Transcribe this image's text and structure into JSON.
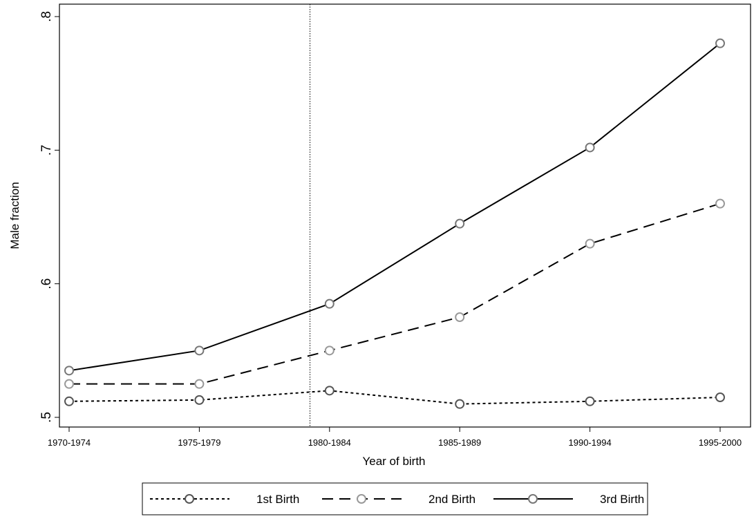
{
  "chart_data": {
    "type": "line",
    "xlabel": "Year of birth",
    "ylabel": "Male fraction",
    "categories": [
      "1970-1974",
      "1975-1979",
      "1980-1984",
      "1985-1989",
      "1990-1994",
      "1995-2000"
    ],
    "ylim": [
      0.5,
      0.8
    ],
    "yticks": [
      0.5,
      0.6,
      0.7,
      0.8
    ],
    "ytick_labels": [
      ".5",
      ".6",
      ".7",
      ".8"
    ],
    "reference_line_x": 1.85,
    "grid": false,
    "legend_position": "bottom",
    "series": [
      {
        "name": "1st Birth",
        "values": [
          0.512,
          0.513,
          0.52,
          0.51,
          0.512,
          0.515
        ],
        "line_style": "dotted",
        "marker_color": "#555555"
      },
      {
        "name": "2nd Birth",
        "values": [
          0.525,
          0.525,
          0.55,
          0.575,
          0.63,
          0.66
        ],
        "line_style": "dashed",
        "marker_color": "#999999"
      },
      {
        "name": "3rd Birth",
        "values": [
          0.535,
          0.55,
          0.585,
          0.645,
          0.702,
          0.78
        ],
        "line_style": "solid",
        "marker_color": "#777777"
      }
    ]
  }
}
